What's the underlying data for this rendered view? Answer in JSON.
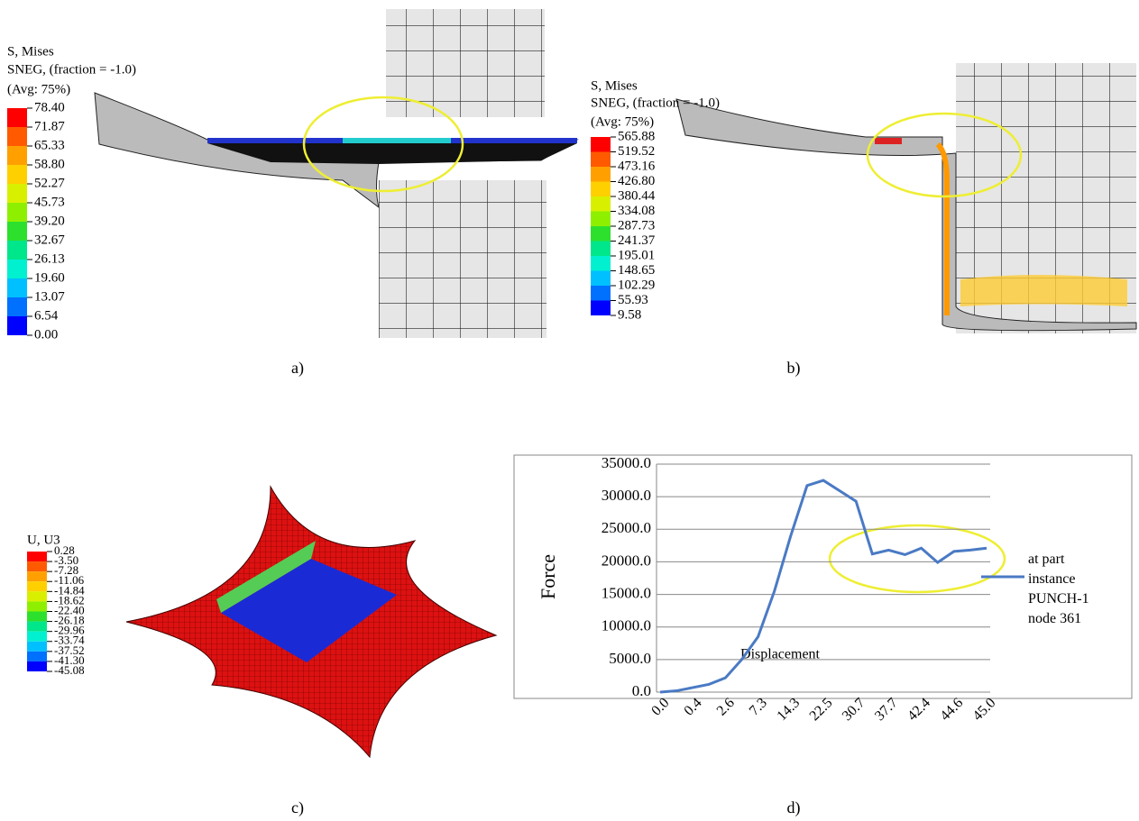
{
  "panels": [
    {
      "caption": "a)",
      "legend": {
        "title": [
          "S, Mises",
          "SNEG, (fraction = -1.0)",
          "(Avg: 75%)"
        ],
        "values": [
          "78.40",
          "71.87",
          "65.33",
          "58.80",
          "52.27",
          "45.73",
          "39.20",
          "32.67",
          "26.13",
          "19.60",
          "13.07",
          "6.54",
          "0.00"
        ]
      }
    },
    {
      "caption": "b)",
      "legend": {
        "title": [
          "S, Mises",
          "SNEG, (fraction = -1.0)",
          "(Avg: 75%)"
        ],
        "values": [
          "565.88",
          "519.52",
          "473.16",
          "426.80",
          "380.44",
          "334.08",
          "287.73",
          "241.37",
          "195.01",
          "148.65",
          "102.29",
          "55.93",
          "9.58"
        ]
      }
    },
    {
      "caption": "c)",
      "legend": {
        "title": [
          "U, U3"
        ],
        "values": [
          "0.28",
          "-3.50",
          "-7.28",
          "-11.06",
          "-14.84",
          "-18.62",
          "-22.40",
          "-26.18",
          "-29.96",
          "-33.74",
          "-37.52",
          "-41.30",
          "-45.08"
        ]
      }
    },
    {
      "caption": "d)"
    }
  ],
  "chart_data": {
    "type": "line",
    "x_label": "Displacement",
    "y_label": "Force",
    "categories": [
      "0.0",
      null,
      "0.4",
      null,
      "2.6",
      null,
      "7.3",
      null,
      "14.3",
      null,
      "22.5",
      null,
      "30.7",
      null,
      "37.7",
      null,
      "42.4",
      null,
      "44.6",
      null,
      "45.0"
    ],
    "series": [
      {
        "name": "at part instance PUNCH-1 node 361",
        "color": "#4a7ac4",
        "values": [
          0,
          200,
          700,
          1200,
          2200,
          5000,
          8500,
          15500,
          24000,
          31700,
          32500,
          30900,
          29300,
          21200,
          21800,
          21100,
          22100,
          19900,
          21600,
          21800,
          22100
        ]
      }
    ],
    "ylim": [
      0,
      35000
    ],
    "yticks": [
      {
        "value": 0,
        "label": "0.0"
      },
      {
        "value": 5000,
        "label": "5000.0"
      },
      {
        "value": 10000,
        "label": "10000.0"
      },
      {
        "value": 15000,
        "label": "15000.0"
      },
      {
        "value": 20000,
        "label": "20000.0"
      },
      {
        "value": 25000,
        "label": "25000.0"
      },
      {
        "value": 30000,
        "label": "30000.0"
      },
      {
        "value": 35000,
        "label": "35000.0"
      }
    ],
    "grid": true,
    "legend_position": "right"
  }
}
